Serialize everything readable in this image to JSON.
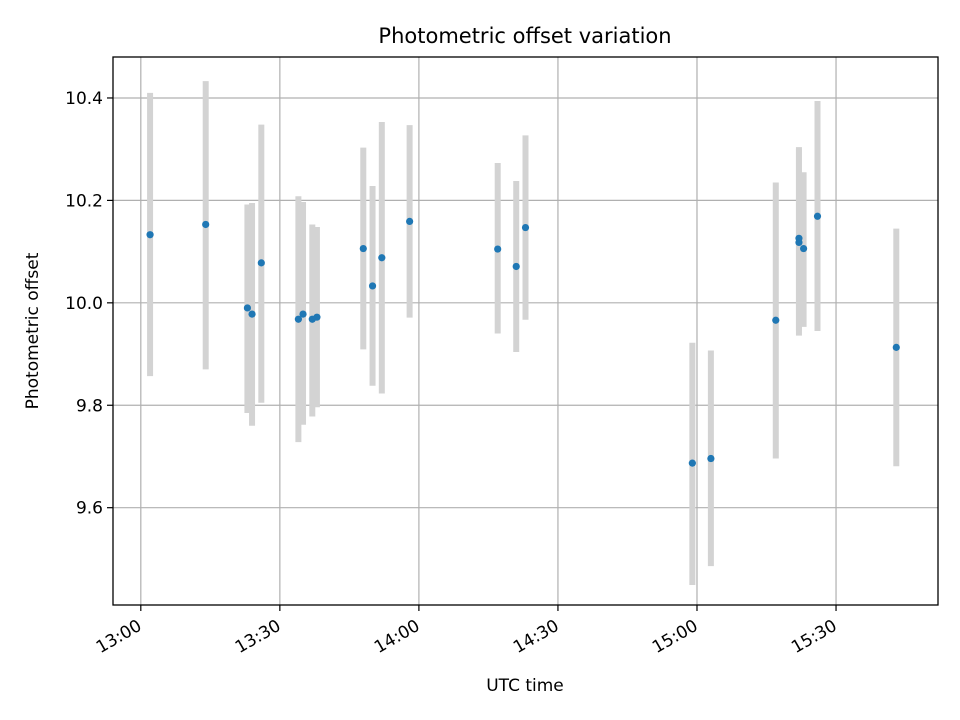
{
  "chart_data": {
    "type": "scatter",
    "title": "Photometric offset variation",
    "xlabel": "UTC time",
    "ylabel": "Photometric offset",
    "grid": true,
    "x_unit": "time",
    "xlim": [
      "12:54",
      "15:52"
    ],
    "ylim": [
      9.41,
      10.48
    ],
    "xticks": [
      "13:00",
      "13:30",
      "14:00",
      "14:30",
      "15:00",
      "15:30"
    ],
    "yticks": [
      "9.6",
      "9.8",
      "10.0",
      "10.2",
      "10.4"
    ],
    "colors": {
      "point": "#1f77b4",
      "errorbar": "#d3d3d3",
      "grid": "#b0b0b0"
    },
    "points": [
      {
        "x": "13:02",
        "y": 10.133,
        "ylo": 9.857,
        "yhi": 10.41
      },
      {
        "x": "13:14",
        "y": 10.153,
        "ylo": 9.87,
        "yhi": 10.433
      },
      {
        "x": "13:23",
        "y": 9.99,
        "ylo": 9.785,
        "yhi": 10.192
      },
      {
        "x": "13:24",
        "y": 9.978,
        "ylo": 9.76,
        "yhi": 10.195
      },
      {
        "x": "13:26",
        "y": 10.078,
        "ylo": 9.805,
        "yhi": 10.348
      },
      {
        "x": "13:34",
        "y": 9.968,
        "ylo": 9.728,
        "yhi": 10.208
      },
      {
        "x": "13:35",
        "y": 9.978,
        "ylo": 9.762,
        "yhi": 10.197
      },
      {
        "x": "13:37",
        "y": 9.968,
        "ylo": 9.778,
        "yhi": 10.153
      },
      {
        "x": "13:38",
        "y": 9.972,
        "ylo": 9.796,
        "yhi": 10.148
      },
      {
        "x": "13:48",
        "y": 10.106,
        "ylo": 9.909,
        "yhi": 10.303
      },
      {
        "x": "13:50",
        "y": 10.033,
        "ylo": 9.838,
        "yhi": 10.228
      },
      {
        "x": "13:52",
        "y": 10.088,
        "ylo": 9.823,
        "yhi": 10.353
      },
      {
        "x": "13:58",
        "y": 10.159,
        "ylo": 9.971,
        "yhi": 10.347
      },
      {
        "x": "14:17",
        "y": 10.105,
        "ylo": 9.94,
        "yhi": 10.273
      },
      {
        "x": "14:21",
        "y": 10.071,
        "ylo": 9.904,
        "yhi": 10.238
      },
      {
        "x": "14:23",
        "y": 10.147,
        "ylo": 9.967,
        "yhi": 10.327
      },
      {
        "x": "14:59",
        "y": 9.687,
        "ylo": 9.449,
        "yhi": 9.922
      },
      {
        "x": "15:03",
        "y": 9.696,
        "ylo": 9.486,
        "yhi": 9.907
      },
      {
        "x": "15:17",
        "y": 9.966,
        "ylo": 9.696,
        "yhi": 10.235
      },
      {
        "x": "15:22",
        "y": 10.118,
        "ylo": 9.936,
        "yhi": 10.3
      },
      {
        "x": "15:22",
        "y": 10.126,
        "ylo": 9.946,
        "yhi": 10.304
      },
      {
        "x": "15:23",
        "y": 10.106,
        "ylo": 9.953,
        "yhi": 10.255
      },
      {
        "x": "15:26",
        "y": 10.169,
        "ylo": 9.945,
        "yhi": 10.394
      },
      {
        "x": "15:43",
        "y": 9.913,
        "ylo": 9.681,
        "yhi": 10.145
      }
    ]
  }
}
